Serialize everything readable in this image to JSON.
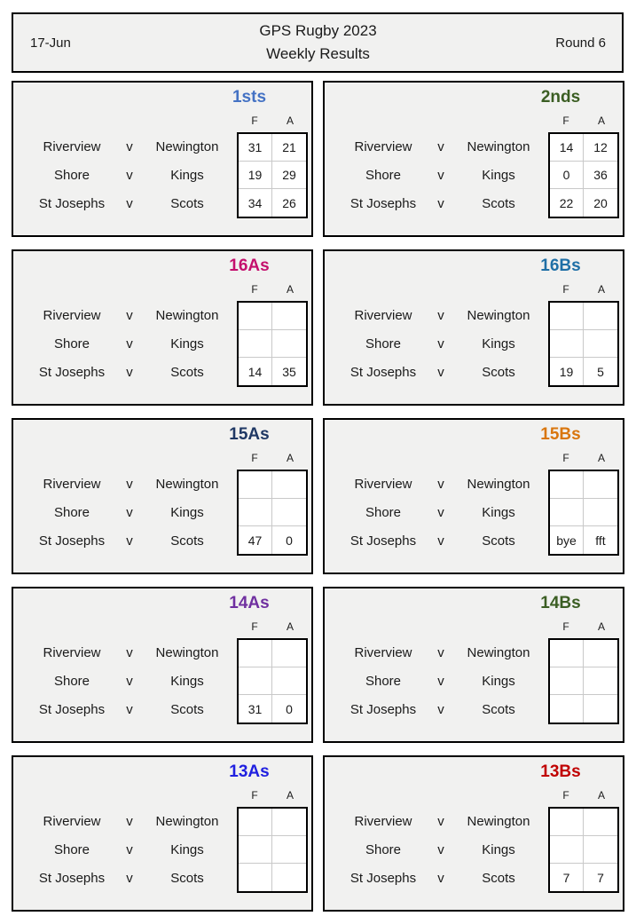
{
  "header": {
    "date": "17-Jun",
    "title_line1": "GPS Rugby 2023",
    "title_line2": "Weekly Results",
    "round": "Round 6"
  },
  "score_headers": {
    "f": "F",
    "a": "A"
  },
  "panels": [
    {
      "title": "1sts",
      "color": "#4472c4",
      "fixtures": [
        {
          "home": "Riverview",
          "vs": "v",
          "away": "Newington",
          "f": "31",
          "a": "21"
        },
        {
          "home": "Shore",
          "vs": "v",
          "away": "Kings",
          "f": "19",
          "a": "29"
        },
        {
          "home": "St Josephs",
          "vs": "v",
          "away": "Scots",
          "f": "34",
          "a": "26"
        }
      ]
    },
    {
      "title": "2nds",
      "color": "#3b5e23",
      "fixtures": [
        {
          "home": "Riverview",
          "vs": "v",
          "away": "Newington",
          "f": "14",
          "a": "12"
        },
        {
          "home": "Shore",
          "vs": "v",
          "away": "Kings",
          "f": "0",
          "a": "36"
        },
        {
          "home": "St Josephs",
          "vs": "v",
          "away": "Scots",
          "f": "22",
          "a": "20"
        }
      ]
    },
    {
      "title": "16As",
      "color": "#c40f6d",
      "fixtures": [
        {
          "home": "Riverview",
          "vs": "v",
          "away": "Newington",
          "f": "",
          "a": ""
        },
        {
          "home": "Shore",
          "vs": "v",
          "away": "Kings",
          "f": "",
          "a": ""
        },
        {
          "home": "St Josephs",
          "vs": "v",
          "away": "Scots",
          "f": "14",
          "a": "35"
        }
      ]
    },
    {
      "title": "16Bs",
      "color": "#1f6fa6",
      "fixtures": [
        {
          "home": "Riverview",
          "vs": "v",
          "away": "Newington",
          "f": "",
          "a": ""
        },
        {
          "home": "Shore",
          "vs": "v",
          "away": "Kings",
          "f": "",
          "a": ""
        },
        {
          "home": "St Josephs",
          "vs": "v",
          "away": "Scots",
          "f": "19",
          "a": "5"
        }
      ]
    },
    {
      "title": "15As",
      "color": "#1f3864",
      "fixtures": [
        {
          "home": "Riverview",
          "vs": "v",
          "away": "Newington",
          "f": "",
          "a": ""
        },
        {
          "home": "Shore",
          "vs": "v",
          "away": "Kings",
          "f": "",
          "a": ""
        },
        {
          "home": "St Josephs",
          "vs": "v",
          "away": "Scots",
          "f": "47",
          "a": "0"
        }
      ]
    },
    {
      "title": "15Bs",
      "color": "#d9760e",
      "fixtures": [
        {
          "home": "Riverview",
          "vs": "v",
          "away": "Newington",
          "f": "",
          "a": ""
        },
        {
          "home": "Shore",
          "vs": "v",
          "away": "Kings",
          "f": "",
          "a": ""
        },
        {
          "home": "St Josephs",
          "vs": "v",
          "away": "Scots",
          "f": "bye",
          "a": "fft"
        }
      ]
    },
    {
      "title": "14As",
      "color": "#7030a0",
      "fixtures": [
        {
          "home": "Riverview",
          "vs": "v",
          "away": "Newington",
          "f": "",
          "a": ""
        },
        {
          "home": "Shore",
          "vs": "v",
          "away": "Kings",
          "f": "",
          "a": ""
        },
        {
          "home": "St Josephs",
          "vs": "v",
          "away": "Scots",
          "f": "31",
          "a": "0"
        }
      ]
    },
    {
      "title": "14Bs",
      "color": "#3b5e23",
      "fixtures": [
        {
          "home": "Riverview",
          "vs": "v",
          "away": "Newington",
          "f": "",
          "a": ""
        },
        {
          "home": "Shore",
          "vs": "v",
          "away": "Kings",
          "f": "",
          "a": ""
        },
        {
          "home": "St Josephs",
          "vs": "v",
          "away": "Scots",
          "f": "",
          "a": ""
        }
      ]
    },
    {
      "title": "13As",
      "color": "#2020e0",
      "fixtures": [
        {
          "home": "Riverview",
          "vs": "v",
          "away": "Newington",
          "f": "",
          "a": ""
        },
        {
          "home": "Shore",
          "vs": "v",
          "away": "Kings",
          "f": "",
          "a": ""
        },
        {
          "home": "St Josephs",
          "vs": "v",
          "away": "Scots",
          "f": "",
          "a": ""
        }
      ]
    },
    {
      "title": "13Bs",
      "color": "#c00000",
      "fixtures": [
        {
          "home": "Riverview",
          "vs": "v",
          "away": "Newington",
          "f": "",
          "a": ""
        },
        {
          "home": "Shore",
          "vs": "v",
          "away": "Kings",
          "f": "",
          "a": ""
        },
        {
          "home": "St Josephs",
          "vs": "v",
          "away": "Scots",
          "f": "7",
          "a": "7"
        }
      ]
    }
  ]
}
